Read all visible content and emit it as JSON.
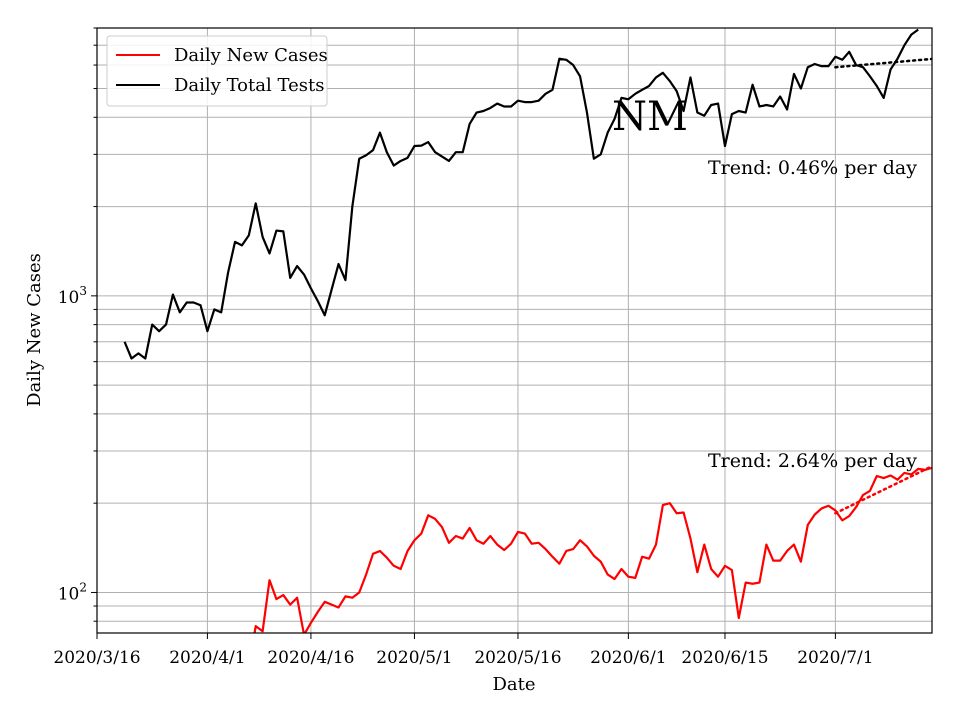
{
  "chart_data": {
    "type": "line",
    "title": "",
    "label": "NM",
    "xlabel": "Date",
    "ylabel": "Daily New Cases",
    "yscale": "log",
    "ylim": [
      73,
      8000
    ],
    "xlim": [
      "2020-03-16",
      "2020-07-15"
    ],
    "grid": true,
    "legend_position": "top-left",
    "x_ticks": [
      {
        "date": "2020-03-16",
        "label": "2020/3/16"
      },
      {
        "date": "2020-04-01",
        "label": "2020/4/1"
      },
      {
        "date": "2020-04-16",
        "label": "2020/4/16"
      },
      {
        "date": "2020-05-01",
        "label": "2020/5/1"
      },
      {
        "date": "2020-05-16",
        "label": "2020/5/16"
      },
      {
        "date": "2020-06-01",
        "label": "2020/6/1"
      },
      {
        "date": "2020-06-15",
        "label": "2020/6/15"
      },
      {
        "date": "2020-07-01",
        "label": "2020/7/1"
      }
    ],
    "y_ticks": [
      {
        "value": 100,
        "base": "10",
        "exp": "2"
      },
      {
        "value": 1000,
        "base": "10",
        "exp": "3"
      }
    ],
    "start_date": "2020-03-20",
    "series": [
      {
        "name": "Daily New Cases",
        "color": "#ff0000",
        "values": [
          null,
          null,
          null,
          null,
          null,
          null,
          null,
          null,
          null,
          null,
          null,
          null,
          null,
          null,
          null,
          null,
          null,
          null,
          56,
          77,
          74,
          110,
          95,
          98,
          91,
          96,
          72,
          79,
          86,
          93,
          91,
          89,
          97,
          96,
          100,
          115,
          135,
          138,
          131,
          123,
          120,
          138,
          150,
          158,
          182,
          177,
          166,
          147,
          155,
          152,
          165,
          150,
          146,
          155,
          145,
          139,
          146,
          160,
          158,
          146,
          147,
          140,
          132,
          125,
          138,
          140,
          150,
          143,
          133,
          127,
          115,
          111,
          120,
          113,
          112,
          132,
          130,
          145,
          197,
          200,
          185,
          186,
          152,
          117,
          145,
          120,
          113,
          123,
          119,
          82,
          108,
          107,
          108,
          145,
          128,
          128,
          138,
          145,
          127,
          169,
          183,
          192,
          196,
          189,
          175,
          181,
          194,
          213,
          220,
          247,
          243,
          248,
          240,
          253,
          250,
          261,
          259,
          263
        ]
      },
      {
        "name": "Daily Total Tests",
        "color": "#000000",
        "values": [
          700,
          615,
          640,
          615,
          800,
          760,
          800,
          1010,
          880,
          950,
          950,
          930,
          760,
          900,
          880,
          1200,
          1520,
          1480,
          1600,
          2050,
          1580,
          1390,
          1660,
          1650,
          1150,
          1260,
          1180,
          1060,
          960,
          860,
          1050,
          1280,
          1130,
          2000,
          2900,
          2980,
          3100,
          3550,
          3050,
          2750,
          2850,
          2920,
          3200,
          3210,
          3300,
          3050,
          2950,
          2850,
          3050,
          3050,
          3800,
          4150,
          4200,
          4300,
          4450,
          4350,
          4350,
          4550,
          4500,
          4500,
          4550,
          4800,
          4950,
          6300,
          6250,
          6000,
          5500,
          4150,
          2900,
          3000,
          3550,
          3950,
          4650,
          4600,
          4800,
          4950,
          5100,
          5450,
          5650,
          5300,
          4900,
          4200,
          5450,
          4150,
          4050,
          4400,
          4450,
          3200,
          4100,
          4200,
          4150,
          5150,
          4350,
          4400,
          4350,
          4700,
          4250,
          5600,
          5000,
          5900,
          6050,
          5950,
          5950,
          6400,
          6250,
          6650,
          6000,
          5900,
          5500,
          5100,
          4650,
          5800,
          6300,
          7000,
          7600,
          7900
        ]
      }
    ],
    "trend_cases": {
      "start_index": 103,
      "end_index": 117,
      "start_value": 185,
      "rate_percent": 2.64,
      "label": "Trend: 2.64% per day"
    },
    "trend_tests": {
      "start_index": 103,
      "end_index": 117,
      "start_value": 5900,
      "rate_percent": 0.46,
      "label": "Trend: 0.46% per day"
    }
  }
}
